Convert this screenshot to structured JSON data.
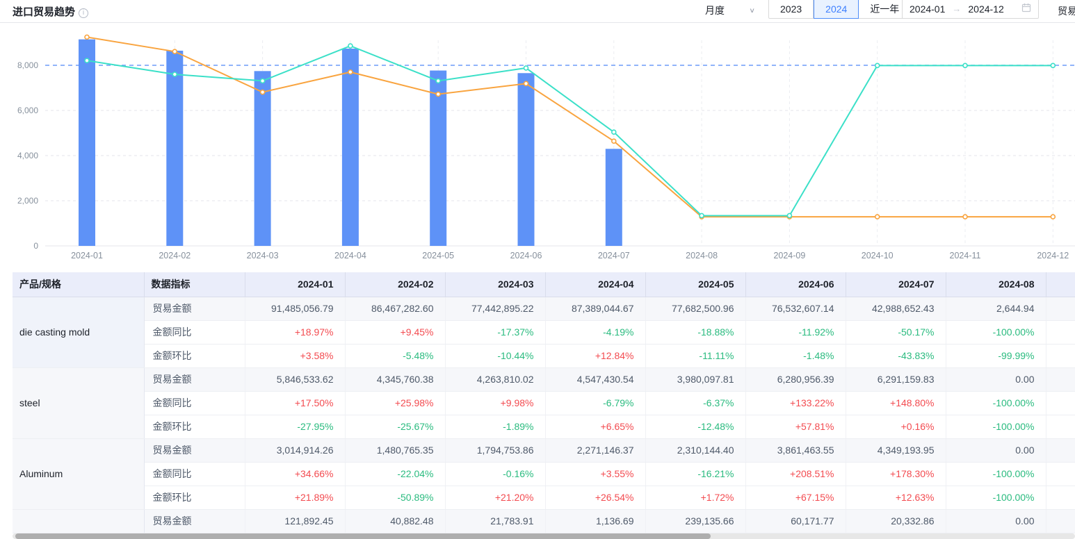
{
  "header": {
    "title": "进口贸易趋势",
    "period_select_value": "月度",
    "year_buttons": [
      "2023",
      "2024",
      "近一年"
    ],
    "active_year": "2024",
    "date_range": {
      "start": "2024-01",
      "end": "2024-12"
    },
    "right_truncated_label": "贸易"
  },
  "colors": {
    "bar": "#5e92f7",
    "line_orange": "#f9a43f",
    "line_teal": "#3be0c8",
    "reference_line": "#6c9bf8",
    "grid": "#e5e6eb",
    "axis_text": "#86909c",
    "positive": "#f34b50",
    "negative": "#2abb7f"
  },
  "chart_data": {
    "type": "bar+line",
    "categories": [
      "2024-01",
      "2024-02",
      "2024-03",
      "2024-04",
      "2024-05",
      "2024-06",
      "2024-07",
      "2024-08",
      "2024-09",
      "2024-10",
      "2024-11",
      "2024-12"
    ],
    "bars": {
      "name": "贸易金额",
      "values": [
        9148.51,
        8646.73,
        7744.29,
        8738.9,
        7768.25,
        7653.26,
        4298.87,
        0.26,
        0,
        0,
        0,
        0
      ]
    },
    "series": [
      {
        "name": "orange-line",
        "color_key": "line_orange",
        "values": [
          9250,
          8610,
          6810,
          7700,
          6720,
          7190,
          4640,
          1290,
          1290,
          1290,
          1290,
          1290
        ]
      },
      {
        "name": "teal-line",
        "color_key": "line_teal",
        "values": [
          8210,
          7600,
          7310,
          8860,
          7310,
          7880,
          5040,
          1340,
          1340,
          7990,
          7990,
          7990
        ]
      }
    ],
    "reference_line": {
      "value": 8000,
      "style": "dashed"
    },
    "y_ticks": [
      0,
      2000,
      4000,
      6000,
      8000
    ],
    "ylim": [
      0,
      9600
    ],
    "grid": "horizontal+vertical dashed",
    "legend_position": "none"
  },
  "table": {
    "headers": [
      "产品/规格",
      "数据指标",
      "2024-01",
      "2024-02",
      "2024-03",
      "2024-04",
      "2024-05",
      "2024-06",
      "2024-07",
      "2024-08"
    ],
    "groups": [
      {
        "product": "die casting mold",
        "highlighted": true,
        "rows": [
          {
            "metric": "贸易金额",
            "values": [
              "91,485,056.79",
              "86,467,282.60",
              "77,442,895.22",
              "87,389,044.67",
              "77,682,500.96",
              "76,532,607.14",
              "42,988,652.43",
              "2,644.94"
            ]
          },
          {
            "metric": "金额同比",
            "values": [
              "+18.97%",
              "+9.45%",
              "-17.37%",
              "-4.19%",
              "-18.88%",
              "-11.92%",
              "-50.17%",
              "-100.00%"
            ]
          },
          {
            "metric": "金额环比",
            "values": [
              "+3.58%",
              "-5.48%",
              "-10.44%",
              "+12.84%",
              "-11.11%",
              "-1.48%",
              "-43.83%",
              "-99.99%"
            ]
          }
        ]
      },
      {
        "product": "steel",
        "highlighted": false,
        "rows": [
          {
            "metric": "贸易金额",
            "values": [
              "5,846,533.62",
              "4,345,760.38",
              "4,263,810.02",
              "4,547,430.54",
              "3,980,097.81",
              "6,280,956.39",
              "6,291,159.83",
              "0.00"
            ]
          },
          {
            "metric": "金额同比",
            "values": [
              "+17.50%",
              "+25.98%",
              "+9.98%",
              "-6.79%",
              "-6.37%",
              "+133.22%",
              "+148.80%",
              "-100.00%"
            ]
          },
          {
            "metric": "金额环比",
            "values": [
              "-27.95%",
              "-25.67%",
              "-1.89%",
              "+6.65%",
              "-12.48%",
              "+57.81%",
              "+0.16%",
              "-100.00%"
            ]
          }
        ]
      },
      {
        "product": "Aluminum",
        "highlighted": false,
        "rows": [
          {
            "metric": "贸易金额",
            "values": [
              "3,014,914.26",
              "1,480,765.35",
              "1,794,753.86",
              "2,271,146.37",
              "2,310,144.40",
              "3,861,463.55",
              "4,349,193.95",
              "0.00"
            ]
          },
          {
            "metric": "金额同比",
            "values": [
              "+34.66%",
              "-22.04%",
              "-0.16%",
              "+3.55%",
              "-16.21%",
              "+208.51%",
              "+178.30%",
              "-100.00%"
            ]
          },
          {
            "metric": "金额环比",
            "values": [
              "+21.89%",
              "-50.89%",
              "+21.20%",
              "+26.54%",
              "+1.72%",
              "+67.15%",
              "+12.63%",
              "-100.00%"
            ]
          }
        ]
      },
      {
        "product": "",
        "highlighted": false,
        "rows": [
          {
            "metric": "贸易金额",
            "values": [
              "121,892.45",
              "40,882.48",
              "21,783.91",
              "1,136.69",
              "239,135.66",
              "60,171.77",
              "20,332.86",
              "0.00"
            ]
          }
        ]
      }
    ]
  }
}
